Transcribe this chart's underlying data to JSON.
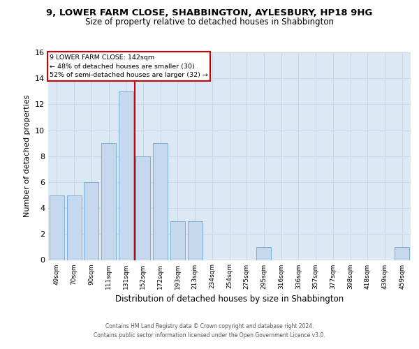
{
  "title": "9, LOWER FARM CLOSE, SHABBINGTON, AYLESBURY, HP18 9HG",
  "subtitle": "Size of property relative to detached houses in Shabbington",
  "xlabel": "Distribution of detached houses by size in Shabbington",
  "ylabel": "Number of detached properties",
  "bar_labels": [
    "49sqm",
    "70sqm",
    "90sqm",
    "111sqm",
    "131sqm",
    "152sqm",
    "172sqm",
    "193sqm",
    "213sqm",
    "234sqm",
    "254sqm",
    "275sqm",
    "295sqm",
    "316sqm",
    "336sqm",
    "357sqm",
    "377sqm",
    "398sqm",
    "418sqm",
    "439sqm",
    "459sqm"
  ],
  "bar_values": [
    5,
    5,
    6,
    9,
    13,
    8,
    9,
    3,
    3,
    0,
    0,
    0,
    1,
    0,
    0,
    0,
    0,
    0,
    0,
    0,
    1
  ],
  "bar_color": "#c5d8ed",
  "bar_edgecolor": "#7bafd4",
  "vline_x": 4.5,
  "property_line_label": "9 LOWER FARM CLOSE: 142sqm",
  "annotation_line1": "← 48% of detached houses are smaller (30)",
  "annotation_line2": "52% of semi-detached houses are larger (32) →",
  "annotation_box_color": "#ffffff",
  "annotation_box_edgecolor": "#cc0000",
  "vline_color": "#cc0000",
  "ylim": [
    0,
    16
  ],
  "yticks": [
    0,
    2,
    4,
    6,
    8,
    10,
    12,
    14,
    16
  ],
  "grid_color": "#c8d8e8",
  "plot_bg_color": "#dce9f5",
  "footer1": "Contains HM Land Registry data © Crown copyright and database right 2024.",
  "footer2": "Contains public sector information licensed under the Open Government Licence v3.0."
}
